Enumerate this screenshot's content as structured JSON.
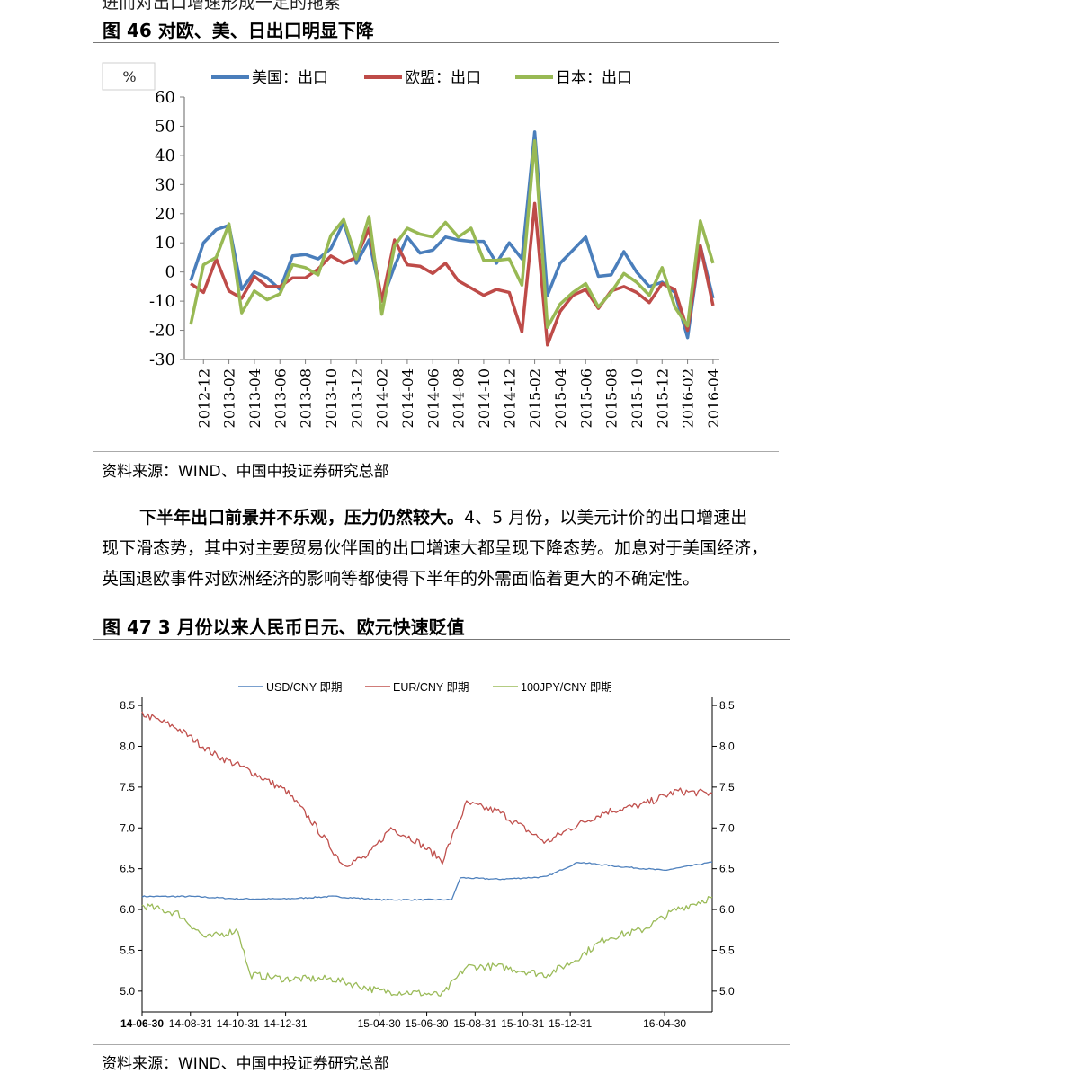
{
  "top_cut_text": "进而对出口增速形成一定的拖累",
  "figure46": {
    "title": "图 46 对欧、美、日出口明显下降",
    "unit": "%",
    "source": "资料来源：WIND、中国中投证券研究总部",
    "chart_data": {
      "type": "line",
      "title": "",
      "ylim": [
        -30,
        60
      ],
      "yticks": [
        "60",
        "50",
        "40",
        "30",
        "20",
        "10",
        "0",
        "-10",
        "-20",
        "-30"
      ],
      "xticks": [
        "2012-12",
        "2013-02",
        "2013-04",
        "2013-06",
        "2013-08",
        "2013-10",
        "2013-12",
        "2014-02",
        "2014-04",
        "2014-06",
        "2014-08",
        "2014-10",
        "2014-12",
        "2015-02",
        "2015-04",
        "2015-06",
        "2015-08",
        "2015-10",
        "2015-12",
        "2016-02",
        "2016-04"
      ],
      "legend_position": "top",
      "series": [
        {
          "name": "美国：出口",
          "color": "#4a7ebb",
          "values": [
            -3,
            10,
            14.5,
            16,
            -6,
            0,
            -2,
            -6,
            5.5,
            6,
            4.5,
            8,
            17,
            3,
            11,
            -10,
            2,
            12,
            6.5,
            7.5,
            12,
            11,
            10.5,
            10.5,
            3,
            10,
            4.5,
            48,
            -8,
            3,
            7.5,
            12,
            -1.5,
            -1,
            7,
            0,
            -5,
            -3.5,
            -7,
            -22.5,
            9,
            -9
          ]
        },
        {
          "name": "欧盟：出口",
          "color": "#be4b48",
          "values": [
            -4,
            -7,
            4.5,
            -6.5,
            -9,
            -1.5,
            -5,
            -5,
            -2,
            -2,
            1,
            5.5,
            3,
            5,
            15,
            -10,
            11,
            2.5,
            2,
            -0.5,
            3,
            -3,
            -5.5,
            -8,
            -6,
            -7,
            -20.5,
            23.5,
            -25,
            -13.5,
            -8,
            -6,
            -12.5,
            -6.5,
            -5,
            -7,
            -10.5,
            -4,
            -6,
            -20,
            9,
            -11.5
          ]
        },
        {
          "name": "日本：出口",
          "color": "#98b954",
          "values": [
            -18,
            2.5,
            5,
            16.5,
            -14,
            -6.5,
            -9.5,
            -7.5,
            2.5,
            1.5,
            -1,
            12.5,
            18,
            4.5,
            19,
            -14.5,
            9,
            15,
            13,
            12,
            17,
            12,
            15,
            4,
            4,
            4.5,
            -4.5,
            45,
            -19,
            -11,
            -7,
            -4,
            -12,
            -7,
            -0.5,
            -3.5,
            -8,
            1.5,
            -12,
            -18.5,
            17.5,
            3
          ]
        }
      ]
    }
  },
  "paragraph": {
    "bold_lead": "下半年出口前景并不乐观，压力仍然较大。",
    "line1_rest": "4、5 月份，以美元计价的出口增速出",
    "line2": "现下滑态势，其中对主要贸易伙伴国的出口增速大都呈现下降态势。加息对于美国经济，",
    "line3": "英国退欧事件对欧洲经济的影响等都使得下半年的外需面临着更大的不确定性。"
  },
  "figure47": {
    "title": "图 47 3 月份以来人民币日元、欧元快速贬值",
    "source": "资料来源：WIND、中国中投证券研究总部",
    "chart_data": {
      "type": "line",
      "title": "",
      "ylim": [
        4.8,
        8.6
      ],
      "yticks": [
        "8.5",
        "8.0",
        "7.5",
        "7.0",
        "6.5",
        "6.0",
        "5.5",
        "5.0"
      ],
      "xticks": [
        "14-06-30",
        "14-08-31",
        "14-10-31",
        "14-12-31",
        "15-04-30",
        "15-06-30",
        "15-08-31",
        "15-10-31",
        "15-12-31",
        "16-04-30"
      ],
      "x_range": [
        "2014-06-30",
        "2016-06-30"
      ],
      "legend_position": "top",
      "series": [
        {
          "name": "USD/CNY 即期",
          "color": "#4f81bd",
          "x": [
            "2014-06-30",
            "2014-09-01",
            "2014-11-01",
            "2015-01-01",
            "2015-03-01",
            "2015-05-01",
            "2015-08-01",
            "2015-08-12",
            "2015-09-30",
            "2015-11-30",
            "2016-01-10",
            "2016-02-28",
            "2016-04-30",
            "2016-06-30"
          ],
          "values": [
            6.16,
            6.16,
            6.13,
            6.13,
            6.16,
            6.12,
            6.12,
            6.39,
            6.37,
            6.4,
            6.58,
            6.53,
            6.48,
            6.58
          ]
        },
        {
          "name": "EUR/CNY 即期",
          "color": "#c0504d",
          "x": [
            "2014-06-30",
            "2014-08-15",
            "2014-10-01",
            "2014-11-15",
            "2015-01-01",
            "2015-02-01",
            "2015-03-15",
            "2015-04-15",
            "2015-05-15",
            "2015-06-15",
            "2015-07-20",
            "2015-08-20",
            "2015-09-30",
            "2015-11-30",
            "2016-01-01",
            "2016-02-15",
            "2016-04-01",
            "2016-05-15",
            "2016-06-30"
          ],
          "values": [
            8.4,
            8.22,
            7.9,
            7.7,
            7.45,
            7.1,
            6.55,
            6.65,
            7.0,
            6.85,
            6.6,
            7.3,
            7.2,
            6.82,
            7.0,
            7.2,
            7.28,
            7.45,
            7.42
          ]
        },
        {
          "name": "100JPY/CNY 即期",
          "color": "#9bbb59",
          "x": [
            "2014-06-30",
            "2014-08-15",
            "2014-09-20",
            "2014-10-31",
            "2014-11-15",
            "2014-12-31",
            "2015-03-01",
            "2015-05-01",
            "2015-06-15",
            "2015-07-20",
            "2015-08-20",
            "2015-09-30",
            "2015-11-30",
            "2016-01-01",
            "2016-02-15",
            "2016-04-01",
            "2016-05-15",
            "2016-06-30"
          ],
          "values": [
            6.05,
            5.95,
            5.65,
            5.75,
            5.2,
            5.15,
            5.15,
            5.0,
            4.98,
            4.95,
            5.3,
            5.3,
            5.2,
            5.35,
            5.65,
            5.75,
            6.0,
            6.15
          ]
        }
      ]
    }
  }
}
